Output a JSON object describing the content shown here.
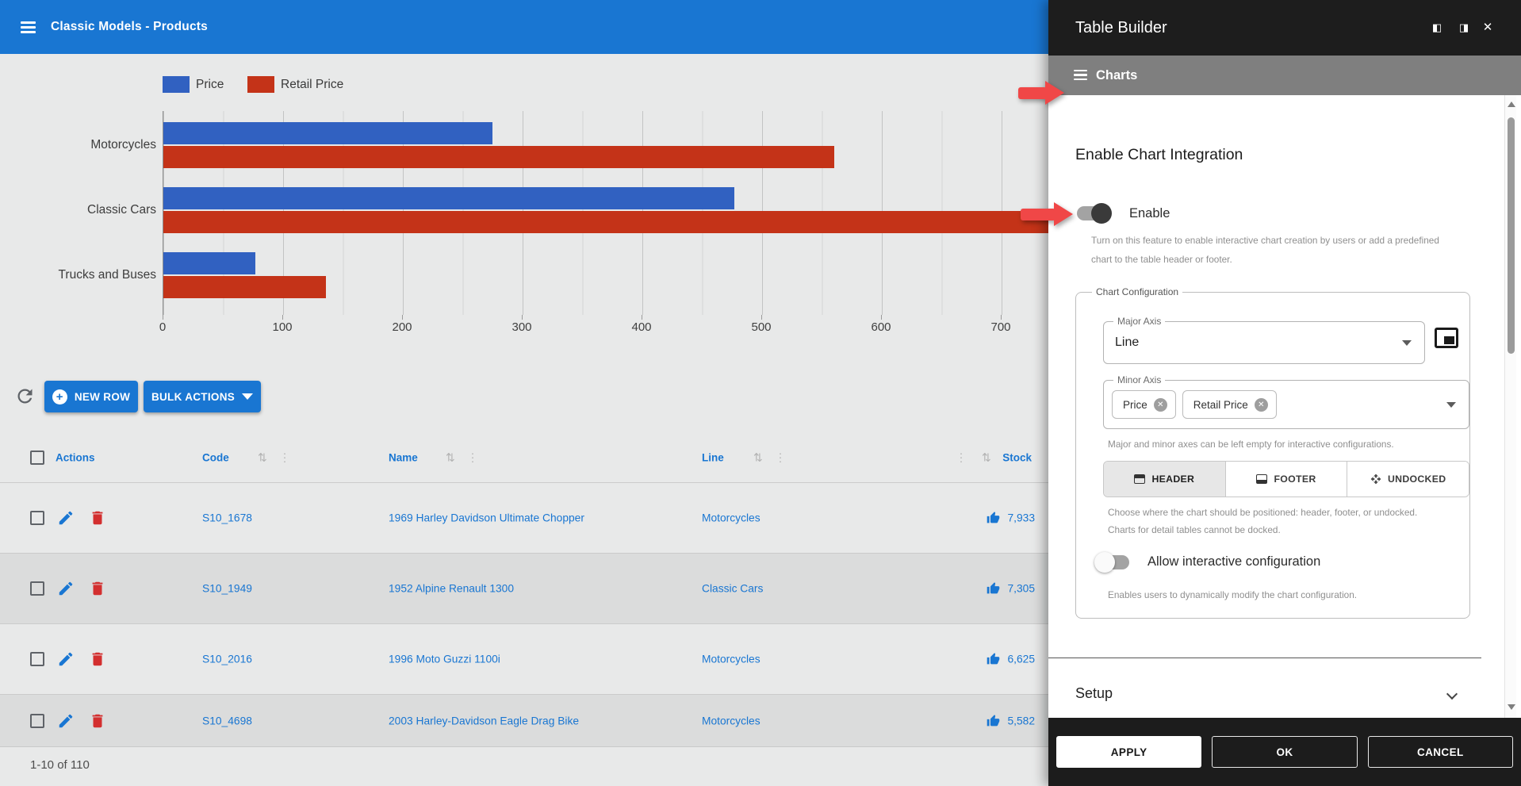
{
  "app": {
    "title": "Classic Models - Products"
  },
  "chart_data": {
    "type": "bar",
    "orientation": "horizontal",
    "title": "",
    "categories": [
      "Motorcycles",
      "Classic Cars",
      "Trucks and Buses"
    ],
    "series": [
      {
        "name": "Price",
        "color": "#3161c1",
        "values": [
          275,
          477,
          77
        ]
      },
      {
        "name": "Retail Price",
        "color": "#c43318",
        "values": [
          560,
          745,
          136
        ]
      }
    ],
    "xlabel": "",
    "ylabel": "",
    "xticks": [
      "0",
      "100",
      "200",
      "300",
      "400",
      "500",
      "600",
      "700"
    ],
    "xlim": [
      0,
      740
    ],
    "grid": true,
    "legend_position": "top-left",
    "note": "Classic Cars Retail Price bar extends under the side panel (clipped)"
  },
  "toolbar": {
    "new_row": "NEW ROW",
    "bulk_actions": "BULK ACTIONS"
  },
  "table": {
    "columns": {
      "actions": "Actions",
      "code": "Code",
      "name": "Name",
      "line": "Line",
      "stock": "Stock"
    },
    "rows": [
      {
        "code": "S10_1678",
        "name": "1969 Harley Davidson Ultimate Chopper",
        "line": "Motorcycles",
        "stock": "7,933"
      },
      {
        "code": "S10_1949",
        "name": "1952 Alpine Renault 1300",
        "line": "Classic Cars",
        "stock": "7,305"
      },
      {
        "code": "S10_2016",
        "name": "1996 Moto Guzzi 1100i",
        "line": "Motorcycles",
        "stock": "6,625"
      },
      {
        "code": "S10_4698",
        "name": "2003 Harley-Davidson Eagle Drag Bike",
        "line": "Motorcycles",
        "stock": "5,582"
      }
    ],
    "footer": "1-10 of 110"
  },
  "panel": {
    "title": "Table Builder",
    "section": "Charts",
    "heading": "Enable Chart Integration",
    "enable": {
      "label": "Enable",
      "state": "on",
      "help": [
        "Turn on this feature to enable interactive chart creation by users or add a predefined",
        "chart to the table header or footer."
      ]
    },
    "config": {
      "legend": "Chart Configuration",
      "major_axis": {
        "label": "Major Axis",
        "value": "Line"
      },
      "minor_axis": {
        "label": "Minor Axis",
        "chips": [
          "Price",
          "Retail Price"
        ]
      },
      "axes_help": "Major and minor axes can be left empty for interactive configurations.",
      "position": {
        "options": [
          "HEADER",
          "FOOTER",
          "UNDOCKED"
        ],
        "selected": "HEADER",
        "help": [
          "Choose where the chart should be positioned: header, footer, or undocked.",
          "Charts for detail tables cannot be docked."
        ]
      },
      "interactive": {
        "label": "Allow interactive configuration",
        "state": "off",
        "help": "Enables users to dynamically modify the chart configuration."
      }
    },
    "setup": "Setup",
    "footer": {
      "apply": "APPLY",
      "ok": "OK",
      "cancel": "CANCEL"
    }
  },
  "icons": {
    "sort": "⇅",
    "kebab": "⋮",
    "dock_left": "◧",
    "dock_right": "◨",
    "close": "✕",
    "plus": "+"
  }
}
